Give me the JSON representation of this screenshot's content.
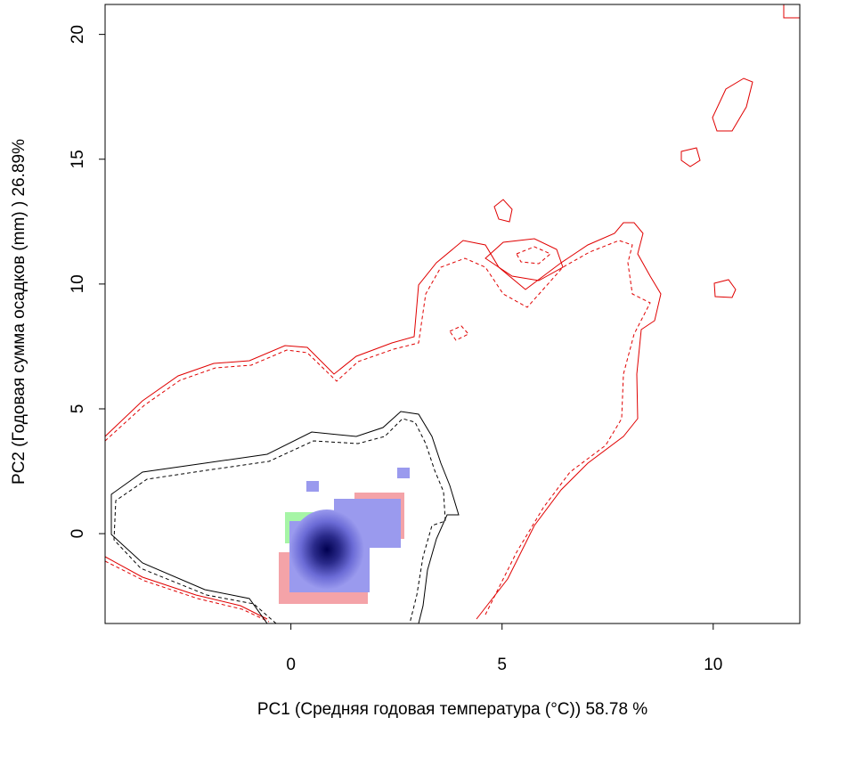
{
  "chart_data": {
    "type": "contour",
    "xlabel": "PC1 (Средняя годовая температура (°C)) 58.78 %",
    "ylabel": "PC2 (Годовая сумма осадков  (mm) ) 26.89%",
    "xlim": [
      -4.4,
      12.05
    ],
    "ylim": [
      -3.6,
      21.2
    ],
    "xticks": [
      0,
      5,
      10
    ],
    "yticks": [
      0,
      5,
      10,
      15,
      20
    ]
  }
}
